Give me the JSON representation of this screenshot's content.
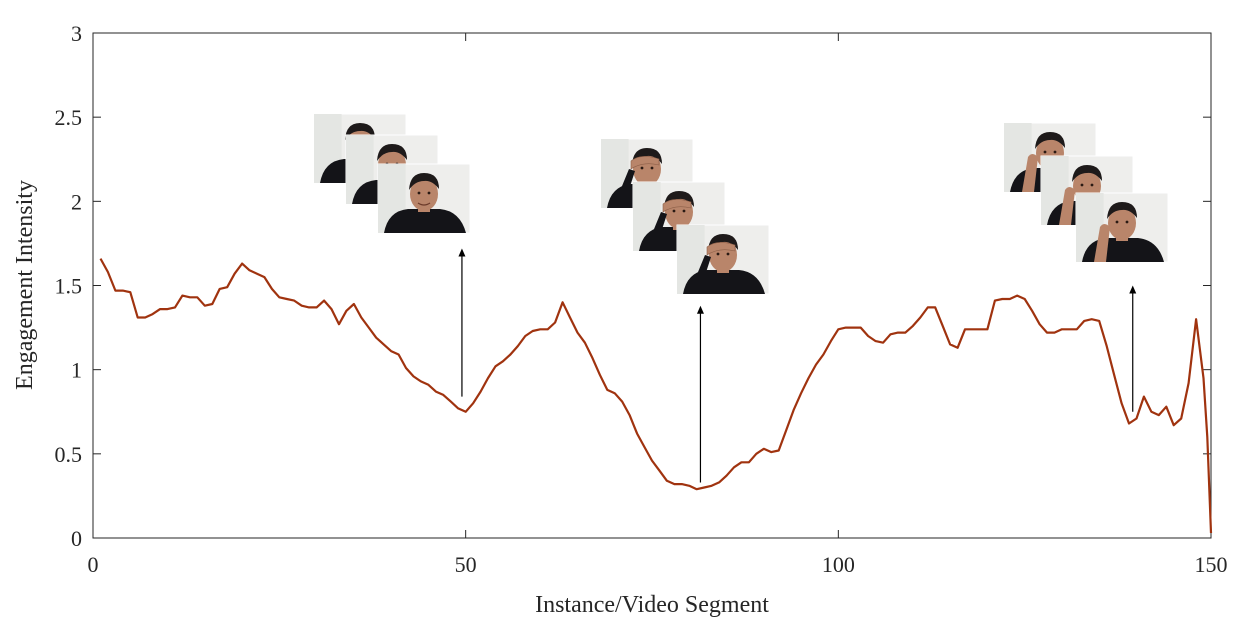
{
  "chart_data": {
    "type": "line",
    "title": "",
    "xlabel": "Instance/Video Segment",
    "ylabel": "Engagement Intensity",
    "xlim": [
      0,
      150
    ],
    "ylim": [
      0,
      3
    ],
    "xticks": [
      0,
      50,
      100,
      150
    ],
    "xtick_labels": [
      "0",
      "50",
      "100",
      "150"
    ],
    "yticks": [
      0,
      0.5,
      1,
      1.5,
      2,
      2.5,
      3
    ],
    "ytick_labels": [
      "0",
      "0.5",
      "1",
      "1.5",
      "2",
      "2.5",
      "3"
    ],
    "grid": false,
    "legend": "none",
    "series": [
      {
        "color": "#a0330f",
        "points": [
          [
            1,
            1.66
          ],
          [
            2,
            1.58
          ],
          [
            3,
            1.47
          ],
          [
            4,
            1.47
          ],
          [
            5,
            1.46
          ],
          [
            6,
            1.31
          ],
          [
            7,
            1.31
          ],
          [
            8,
            1.33
          ],
          [
            9,
            1.36
          ],
          [
            10,
            1.36
          ],
          [
            11,
            1.37
          ],
          [
            12,
            1.44
          ],
          [
            13,
            1.43
          ],
          [
            14,
            1.43
          ],
          [
            15,
            1.38
          ],
          [
            16,
            1.39
          ],
          [
            17,
            1.48
          ],
          [
            18,
            1.49
          ],
          [
            19,
            1.57
          ],
          [
            20,
            1.63
          ],
          [
            21,
            1.59
          ],
          [
            22,
            1.57
          ],
          [
            23,
            1.55
          ],
          [
            24,
            1.48
          ],
          [
            25,
            1.43
          ],
          [
            26,
            1.42
          ],
          [
            27,
            1.41
          ],
          [
            28,
            1.38
          ],
          [
            29,
            1.37
          ],
          [
            30,
            1.37
          ],
          [
            31,
            1.41
          ],
          [
            32,
            1.36
          ],
          [
            33,
            1.27
          ],
          [
            34,
            1.35
          ],
          [
            35,
            1.39
          ],
          [
            36,
            1.31
          ],
          [
            37,
            1.25
          ],
          [
            38,
            1.19
          ],
          [
            39,
            1.15
          ],
          [
            40,
            1.11
          ],
          [
            41,
            1.09
          ],
          [
            42,
            1.01
          ],
          [
            43,
            0.96
          ],
          [
            44,
            0.93
          ],
          [
            45,
            0.91
          ],
          [
            46,
            0.87
          ],
          [
            47,
            0.85
          ],
          [
            48,
            0.81
          ],
          [
            49,
            0.77
          ],
          [
            50,
            0.75
          ],
          [
            51,
            0.8
          ],
          [
            52,
            0.87
          ],
          [
            53,
            0.95
          ],
          [
            54,
            1.02
          ],
          [
            55,
            1.05
          ],
          [
            56,
            1.09
          ],
          [
            57,
            1.14
          ],
          [
            58,
            1.2
          ],
          [
            59,
            1.23
          ],
          [
            60,
            1.24
          ],
          [
            61,
            1.24
          ],
          [
            62,
            1.28
          ],
          [
            63,
            1.4
          ],
          [
            64,
            1.31
          ],
          [
            65,
            1.22
          ],
          [
            66,
            1.16
          ],
          [
            67,
            1.07
          ],
          [
            68,
            0.97
          ],
          [
            69,
            0.88
          ],
          [
            70,
            0.86
          ],
          [
            71,
            0.81
          ],
          [
            72,
            0.73
          ],
          [
            73,
            0.62
          ],
          [
            74,
            0.54
          ],
          [
            75,
            0.46
          ],
          [
            76,
            0.4
          ],
          [
            77,
            0.34
          ],
          [
            78,
            0.32
          ],
          [
            79,
            0.32
          ],
          [
            80,
            0.31
          ],
          [
            81,
            0.29
          ],
          [
            82,
            0.3
          ],
          [
            83,
            0.31
          ],
          [
            84,
            0.33
          ],
          [
            85,
            0.37
          ],
          [
            86,
            0.42
          ],
          [
            87,
            0.45
          ],
          [
            88,
            0.45
          ],
          [
            89,
            0.5
          ],
          [
            90,
            0.53
          ],
          [
            91,
            0.51
          ],
          [
            92,
            0.52
          ],
          [
            93,
            0.64
          ],
          [
            94,
            0.76
          ],
          [
            95,
            0.86
          ],
          [
            96,
            0.95
          ],
          [
            97,
            1.03
          ],
          [
            98,
            1.09
          ],
          [
            99,
            1.17
          ],
          [
            100,
            1.24
          ],
          [
            101,
            1.25
          ],
          [
            102,
            1.25
          ],
          [
            103,
            1.25
          ],
          [
            104,
            1.2
          ],
          [
            105,
            1.17
          ],
          [
            106,
            1.16
          ],
          [
            107,
            1.21
          ],
          [
            108,
            1.22
          ],
          [
            109,
            1.22
          ],
          [
            110,
            1.26
          ],
          [
            111,
            1.31
          ],
          [
            112,
            1.37
          ],
          [
            113,
            1.37
          ],
          [
            114,
            1.26
          ],
          [
            115,
            1.15
          ],
          [
            116,
            1.13
          ],
          [
            117,
            1.24
          ],
          [
            118,
            1.24
          ],
          [
            119,
            1.24
          ],
          [
            120,
            1.24
          ],
          [
            121,
            1.41
          ],
          [
            122,
            1.42
          ],
          [
            123,
            1.42
          ],
          [
            124,
            1.44
          ],
          [
            125,
            1.42
          ],
          [
            126,
            1.35
          ],
          [
            127,
            1.27
          ],
          [
            128,
            1.22
          ],
          [
            129,
            1.22
          ],
          [
            130,
            1.24
          ],
          [
            131,
            1.24
          ],
          [
            132,
            1.24
          ],
          [
            133,
            1.29
          ],
          [
            134,
            1.3
          ],
          [
            135,
            1.29
          ],
          [
            136,
            1.14
          ],
          [
            137,
            0.97
          ],
          [
            138,
            0.8
          ],
          [
            139,
            0.68
          ],
          [
            140,
            0.71
          ],
          [
            141,
            0.84
          ],
          [
            142,
            0.75
          ],
          [
            143,
            0.73
          ],
          [
            144,
            0.78
          ],
          [
            145,
            0.67
          ],
          [
            146,
            0.71
          ],
          [
            147,
            0.92
          ],
          [
            148,
            1.3
          ],
          [
            149,
            0.95
          ],
          [
            149.5,
            0.6
          ],
          [
            150,
            0.03
          ]
        ]
      }
    ],
    "annotations": [
      {
        "type": "arrow",
        "x": 49.5,
        "y_from": 0.84,
        "y_to": 1.72
      },
      {
        "type": "arrow",
        "x": 81.5,
        "y_from": 0.33,
        "y_to": 1.38
      },
      {
        "type": "arrow",
        "x": 139.5,
        "y_from": 0.75,
        "y_to": 1.5
      }
    ],
    "image_groups": [
      {
        "count": 3,
        "depicts": "face-smiling"
      },
      {
        "count": 3,
        "depicts": "face-hand-on-forehead"
      },
      {
        "count": 3,
        "depicts": "face-resting-on-hand"
      }
    ],
    "colors": {
      "axis": "#262626",
      "line": "#a0330f",
      "arrow": "#000000"
    }
  }
}
